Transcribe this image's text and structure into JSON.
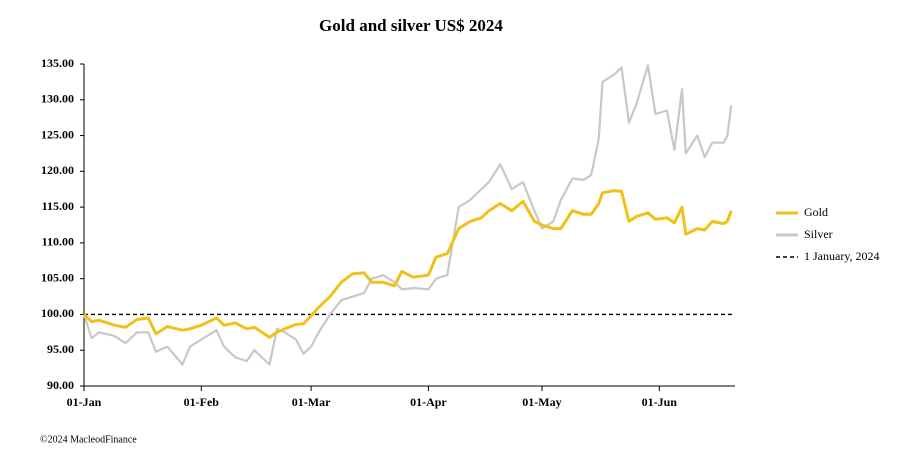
{
  "chart_data": {
    "type": "line",
    "title": "Gold and silver  US$ 2024",
    "x": [
      "01-Jan",
      "03-Jan",
      "05-Jan",
      "09-Jan",
      "12-Jan",
      "15-Jan",
      "18-Jan",
      "20-Jan",
      "23-Jan",
      "27-Jan",
      "29-Jan",
      "01-Feb",
      "05-Feb",
      "07-Feb",
      "10-Feb",
      "13-Feb",
      "15-Feb",
      "19-Feb",
      "21-Feb",
      "23-Feb",
      "26-Feb",
      "28-Feb",
      "01-Mar",
      "03-Mar",
      "06-Mar",
      "09-Mar",
      "12-Mar",
      "15-Mar",
      "17-Mar",
      "20-Mar",
      "23-Mar",
      "25-Mar",
      "28-Mar",
      "01-Apr",
      "03-Apr",
      "06-Apr",
      "09-Apr",
      "12-Apr",
      "15-Apr",
      "17-Apr",
      "20-Apr",
      "23-Apr",
      "26-Apr",
      "29-Apr",
      "01-May",
      "04-May",
      "06-May",
      "09-May",
      "12-May",
      "14-May",
      "16-May",
      "17-May",
      "20-May",
      "22-May",
      "24-May",
      "26-May",
      "29-May",
      "31-May",
      "03-Jun",
      "05-Jun",
      "07-Jun",
      "08-Jun",
      "11-Jun",
      "13-Jun",
      "15-Jun",
      "18-Jun",
      "19-Jun",
      "20-Jun"
    ],
    "series": [
      {
        "name": "Gold",
        "color": "#f2c01a",
        "values": [
          100,
          99,
          99.2,
          98.5,
          98.2,
          99.3,
          99.5,
          97.3,
          98.3,
          97.8,
          98,
          98.5,
          99.5,
          98.5,
          98.8,
          98,
          98.2,
          96.8,
          97.5,
          98,
          98.6,
          98.7,
          99.8,
          101,
          102.5,
          104.5,
          105.7,
          105.8,
          104.5,
          104.5,
          104,
          106,
          105.2,
          105.5,
          108,
          108.5,
          112,
          113,
          113.5,
          114.5,
          115.5,
          114.5,
          115.8,
          113,
          112.5,
          112,
          112,
          114.5,
          114,
          114,
          115.5,
          117,
          117.3,
          117.2,
          113,
          113.7,
          114.2,
          113.3,
          113.5,
          112.8,
          115,
          111.2,
          112,
          111.8,
          113,
          112.7,
          113,
          114.5
        ]
      },
      {
        "name": "Silver",
        "color": "#c8c8c8",
        "values": [
          100,
          96.7,
          97.5,
          97,
          96,
          97.5,
          97.5,
          94.8,
          95.5,
          93,
          95.5,
          96.5,
          97.8,
          95.5,
          94,
          93.5,
          95,
          93,
          98,
          97.5,
          96.5,
          94.5,
          95.5,
          97.5,
          100,
          102,
          102.5,
          103,
          105,
          105.5,
          104.5,
          103.5,
          103.7,
          103.5,
          105,
          105.5,
          115,
          116,
          117.5,
          118.5,
          121,
          117.5,
          118.5,
          114.5,
          112,
          113,
          116,
          119,
          118.8,
          119.5,
          124.5,
          132.5,
          133.5,
          134.5,
          126.8,
          129.5,
          134.8,
          128,
          128.5,
          123,
          131.5,
          122.5,
          125,
          122,
          124,
          124,
          125,
          129.2
        ]
      }
    ],
    "reference_line": {
      "name": "1 January, 2024",
      "value": 100,
      "color": "#000000"
    },
    "xlim": [
      "01-Jan",
      "21-Jun"
    ],
    "xticks": [
      "01-Jan",
      "01-Feb",
      "01-Mar",
      "01-Apr",
      "01-May",
      "01-Jun"
    ],
    "ylim": [
      90,
      135
    ],
    "yticks": [
      {
        "value": 90,
        "label": "90.00"
      },
      {
        "value": 95,
        "label": "95.00"
      },
      {
        "value": 100,
        "label": "100.00"
      },
      {
        "value": 105,
        "label": "105.00"
      },
      {
        "value": 110,
        "label": "110.00"
      },
      {
        "value": 115,
        "label": "115.00"
      },
      {
        "value": 120,
        "label": "120.00"
      },
      {
        "value": 125,
        "label": "125.00"
      },
      {
        "value": 130,
        "label": "130.00"
      },
      {
        "value": 135,
        "label": "135.00"
      }
    ],
    "legend": "right",
    "footnote": "©2024 MacleodFinance"
  }
}
